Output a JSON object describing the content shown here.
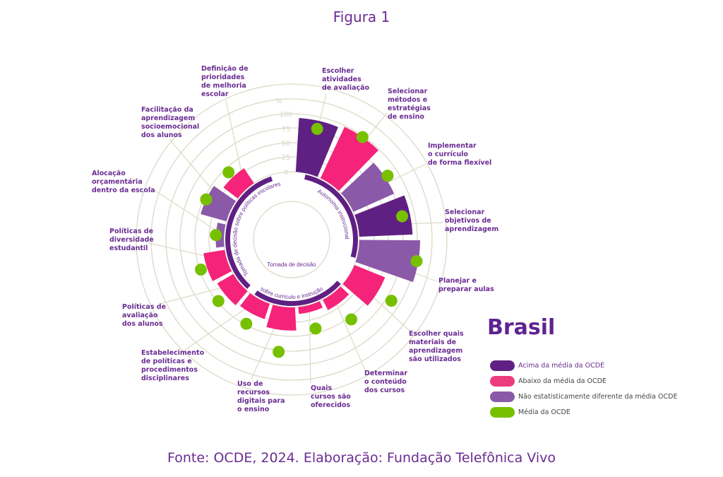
{
  "title": "Figura 1",
  "source": "Fonte: OCDE, 2024. Elaboração: Fundação Telefônica Vivo",
  "colors": {
    "acima": "#5f2083",
    "abaixo": "#f5237a",
    "nao_diferente": "#8a5aa8",
    "media": "#77c000",
    "grid": "#dcd9c6",
    "text": "#6a2c91"
  },
  "legend": {
    "country": "Brasil",
    "items": [
      {
        "key": "acima",
        "label": "Acima da média da OCDE"
      },
      {
        "key": "abaixo",
        "label": "Abaixo da média da OCDE"
      },
      {
        "key": "nao_diferente",
        "label": "Não estatisticamente diferente da média OCDE"
      },
      {
        "key": "media",
        "label": "Média da OCDE"
      }
    ]
  },
  "chart_data": {
    "type": "radial-bar",
    "unit": "%",
    "ticks": [
      "0",
      "25",
      "50",
      "75",
      "100"
    ],
    "rlim": [
      0,
      110
    ],
    "groups": [
      {
        "label": "Autonomia instrucional"
      },
      {
        "label_lines": [
          "Tomada de decisão",
          "sobre currículo e instrução"
        ]
      },
      {
        "label": "Tomada de decisão sobre políticas escolares"
      }
    ],
    "categories": [
      "Escolher\natividades\nde avaliação",
      "Selecionar\nmétodos e\nestratégias\nde ensino",
      "Implementar\no currículo\nde forma flexível",
      "Selecionar\nobjetivos de\naprendizagem",
      "Planejar e\npreparar aulas",
      "Escolher quais\nmateriais de\naprendizagem\nsão utilizados",
      "Determinar\no conteúdo\ndos cursos",
      "Quais\ncursos são\noferecidos",
      "Uso de\nrecursos\ndigitais para\no ensino",
      "Estabelecimento\nde políticas e\nprocedimentos\ndisciplinares",
      "Políticas de\navaliação\ndos alunos",
      "Políticas de\ndiversidade\nestudantil",
      "Alocação\norçamentária\ndentro da escola",
      "Facilitação da\naprendizagem\nsocioemocional\ndos alunos",
      "Definição de\nprioridades\nde melhoria\nescolar"
    ],
    "group_index": [
      0,
      0,
      0,
      0,
      0,
      1,
      1,
      1,
      2,
      2,
      2,
      2,
      2,
      2,
      2
    ],
    "values": [
      93,
      98,
      77,
      92,
      105,
      57,
      20,
      12,
      40,
      28,
      32,
      37,
      14,
      46,
      31
    ],
    "oecd_average": [
      79,
      98,
      82,
      78,
      102,
      85,
      55,
      42,
      78,
      48,
      48,
      48,
      14,
      46,
      42
    ],
    "status": [
      "acima",
      "abaixo",
      "nao_diferente",
      "acima",
      "nao_diferente",
      "abaixo",
      "abaixo",
      "abaixo",
      "abaixo",
      "abaixo",
      "abaixo",
      "abaixo",
      "nao_diferente",
      "nao_diferente",
      "abaixo"
    ]
  }
}
